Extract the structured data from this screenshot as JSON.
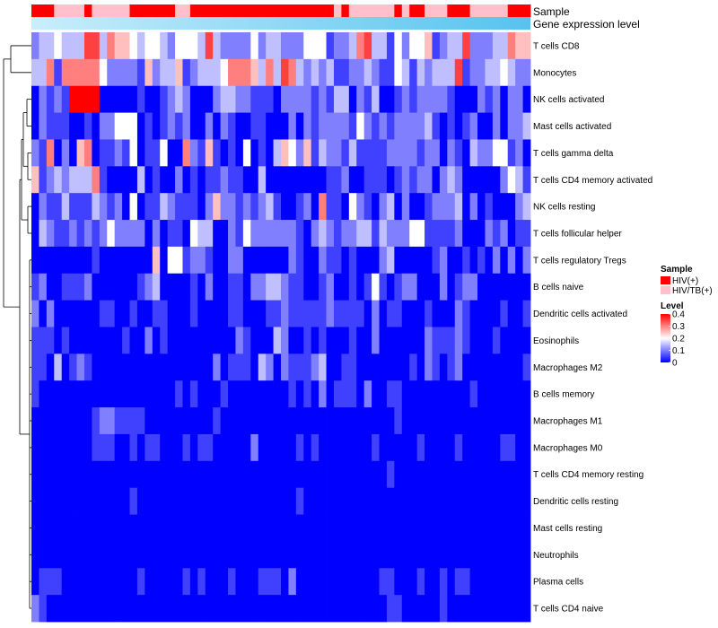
{
  "chart_data": {
    "type": "heatmap",
    "annotation_rows": [
      {
        "label": "Sample"
      },
      {
        "label": "Gene expression level"
      }
    ],
    "rows": [
      "T cells CD8",
      "Monocytes",
      "NK cells activated",
      "Mast cells activated",
      "T cells gamma delta",
      "T cells CD4 memory activated",
      "NK cells resting",
      "T cells follicular helper",
      "T cells regulatory  Tregs",
      "B cells naive",
      "Dendritic cells activated",
      "Eosinophils",
      "Macrophages M2",
      "B cells memory",
      "Macrophages M1",
      "Macrophages M0",
      "T cells CD4 memory resting",
      "Dendritic cells resting",
      "Mast cells resting",
      "Neutrophils",
      "Plasma cells",
      "T cells CD4 naive"
    ],
    "sample_groups": "HHHLLLLHLLLLLHHHHHHLLHHHHHHHHHHHHHHHHHHHLHLLLLLLHLHHLLLHHHLLLLLHHH",
    "sample_code_key": {
      "H": "HIV(+)",
      "L": "HIV/TB(+)"
    },
    "row_levels_pct": [
      "233433377365543443244437322224233222444122367331424451233722233655",
      "336166666422221523351233346665363763232311223211431323337122334322",
      "021218888000001001232000233221110222212133021300121222210002120220",
      "021110010224440101212002021001100020212222142121222231010120020223",
      "216020560112140114006215101040103542513221311112222122021032244120",
      "512323336100003010020101121100300000000112001110121220232000002431",
      "021131113212040113211102522121231001206110421023020012223020100023",
      "032112121242222020110433002142222221023212233132224411112000212011",
      "000000001000000050441221002200000021002110100023000001200101020202",
      "120011120000001230000102001102233211001200101410122000201220000000",
      "202000000110010011000100001100011211111211110201100010002100001001",
      "111010000000100201000000000210003200101000100200000021112100010000",
      "110301210000000000000000201110320211123001100000001021012000000001",
      "100000000000000000010100010000000010102011102001100000000010000000",
      "000000001221111000000000100000000000000000000000100000000000000000",
      "000000001110010110001011000002000001010000000100000100001000001100",
      "000000000000000000000000000000000000000000000001000000000000000000",
      "000000000000010000000000000000000001000000000000000000000000000000",
      "000000000000000000000000000000000000000000000000000000000000000000",
      "000000000000000000000000000000000000000000000000000000000000000000",
      "011100000000001000001010001000111020000000000011000100101100000000",
      "210000000000000000000000000000000000000000000001100000100000000000"
    ],
    "legend_sample": {
      "title": "Sample",
      "entries": [
        "HIV(+)",
        "HIV/TB(+)"
      ],
      "colors": [
        "#FF0000",
        "#FFC0CB"
      ]
    },
    "legend_level": {
      "title": "Level",
      "ticks": [
        "0.4",
        "0.3",
        "0.2",
        "0.1",
        "0"
      ],
      "min": 0,
      "max": 0.4
    },
    "colors": {
      "low": "#0000FF",
      "mid": "#FFFFFF",
      "high": "#FF0000",
      "expression_bar_start": "#C9EEFB",
      "expression_bar_end": "#56C3EE"
    }
  }
}
